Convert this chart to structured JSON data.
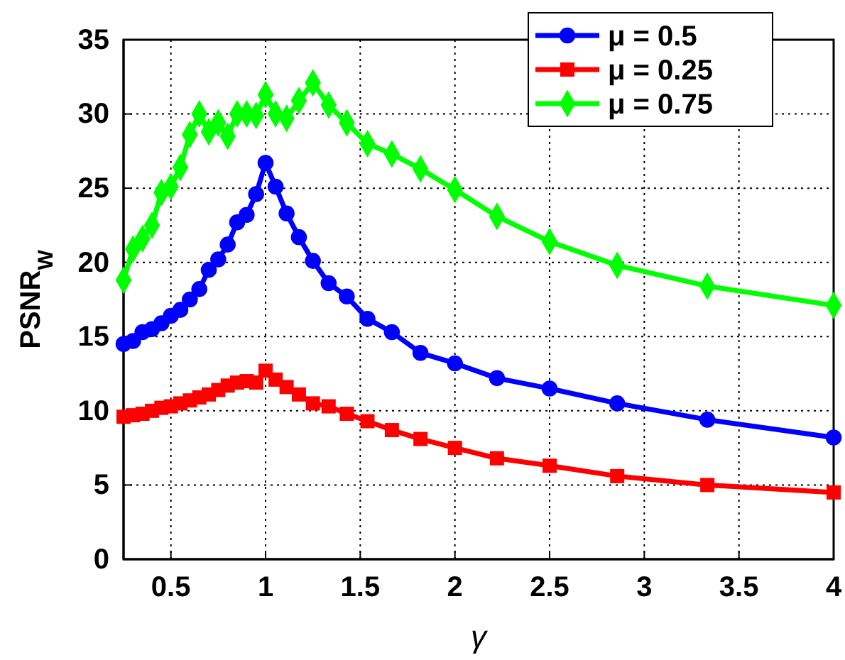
{
  "chart_data": {
    "type": "line",
    "xlabel": "γ",
    "ylabel": "PSNR$_{W}$",
    "x": [
      0.25,
      0.3,
      0.35,
      0.4,
      0.45,
      0.5,
      0.55,
      0.6,
      0.65,
      0.7,
      0.75,
      0.8,
      0.85,
      0.9,
      0.95,
      1,
      1.053,
      1.111,
      1.176,
      1.25,
      1.333,
      1.429,
      1.538,
      1.667,
      1.818,
      2,
      2.222,
      2.5,
      2.857,
      3.333,
      4
    ],
    "series": [
      {
        "name": "μ = 0.5",
        "color": "#0000ff",
        "marker": "circle",
        "values": [
          14.5,
          14.7,
          15.3,
          15.5,
          15.9,
          16.4,
          16.8,
          17.5,
          18.2,
          19.5,
          20.2,
          21.2,
          22.7,
          23.2,
          24.6,
          26.7,
          25.1,
          23.3,
          21.7,
          20.1,
          18.6,
          17.7,
          16.2,
          15.3,
          13.9,
          13.2,
          12.2,
          11.5,
          10.5,
          9.4,
          8.2
        ]
      },
      {
        "name": "μ = 0.25",
        "color": "#ff0000",
        "marker": "square",
        "values": [
          9.6,
          9.7,
          9.8,
          10.0,
          10.2,
          10.3,
          10.5,
          10.7,
          10.9,
          11.1,
          11.4,
          11.7,
          11.9,
          12.0,
          11.9,
          12.7,
          12.1,
          11.6,
          11.1,
          10.5,
          10.3,
          9.8,
          9.3,
          8.7,
          8.1,
          7.5,
          6.8,
          6.3,
          5.6,
          5.0,
          4.5
        ]
      },
      {
        "name": "μ = 0.75",
        "color": "#00ff00",
        "marker": "diamond",
        "values": [
          18.8,
          20.9,
          21.6,
          22.5,
          24.7,
          25.1,
          26.4,
          28.6,
          30.0,
          28.8,
          29.4,
          28.5,
          30.0,
          30.0,
          29.9,
          31.3,
          30.0,
          29.7,
          30.9,
          32.1,
          30.6,
          29.4,
          28.0,
          27.3,
          26.3,
          24.9,
          23.1,
          21.4,
          19.8,
          18.4,
          17.1
        ]
      }
    ],
    "xlim": [
      0.25,
      4
    ],
    "xticks": [
      0.5,
      1,
      1.5,
      2,
      2.5,
      3,
      3.5,
      4
    ],
    "ylim": [
      0,
      35
    ],
    "yticks": [
      0,
      5,
      10,
      15,
      20,
      25,
      30,
      35
    ],
    "grid": true,
    "legend": "top right",
    "line_style": "solid"
  }
}
